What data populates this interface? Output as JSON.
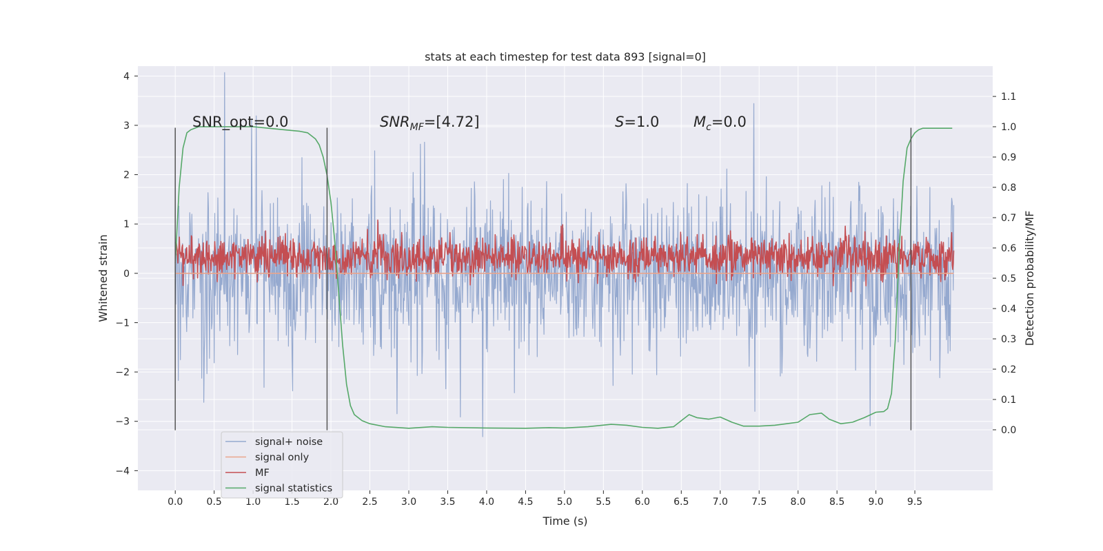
{
  "chart_data": {
    "type": "line",
    "title": "stats at each timestep for test data 893 [signal=0]",
    "xlabel": "Time (s)",
    "ylabel_left": "Whitened strain",
    "ylabel_right": "Detection probability/MF",
    "xlim": [
      -0.48,
      10.5
    ],
    "ylim_left": [
      -4.4,
      4.2
    ],
    "ylim_right": [
      -0.2,
      1.2
    ],
    "x_ticks": [
      "0.0",
      "0.5",
      "1.0",
      "1.5",
      "2.0",
      "2.5",
      "3.0",
      "3.5",
      "4.0",
      "4.5",
      "5.0",
      "5.5",
      "6.0",
      "6.5",
      "7.0",
      "7.5",
      "8.0",
      "8.5",
      "9.0",
      "9.5"
    ],
    "y_left_ticks": [
      "4",
      "3",
      "2",
      "1",
      "0",
      "−1",
      "−2",
      "−3",
      "−4"
    ],
    "y_right_ticks": [
      "1.1",
      "1.0",
      "0.9",
      "0.8",
      "0.7",
      "0.6",
      "0.5",
      "0.4",
      "0.3",
      "0.2",
      "0.1",
      "0.0"
    ],
    "grid": true,
    "legend_position": "lower-left",
    "annotations": {
      "snr_opt": "SNR_opt=0.0",
      "snr_mf_base": "SNR",
      "snr_mf_sub": "MF",
      "snr_mf_rest": "=[4.72]",
      "s_base": "S",
      "s_rest": "=1.0",
      "mc_base": "M",
      "mc_sub": "c",
      "mc_rest": "=0.0"
    },
    "vertical_lines_x": [
      0.0,
      1.95,
      9.45
    ],
    "series": [
      {
        "name": "signal+ noise",
        "color": "#95a9cf",
        "axis": "left",
        "x_range": [
          0.0,
          10.0
        ],
        "mean": 0.0,
        "std": 0.8,
        "samples": 1500,
        "seed": 893
      },
      {
        "name": "signal only",
        "color": "#e9a58c",
        "axis": "left",
        "x": [
          0.0,
          10.0
        ],
        "values": [
          0.0,
          0.0
        ]
      },
      {
        "name": "MF",
        "color": "#c44e52",
        "axis": "right",
        "x_range": [
          0.0,
          10.0
        ],
        "mean": 0.57,
        "std": 0.035,
        "samples": 1500,
        "seed": 42
      },
      {
        "name": "signal statistics",
        "color": "#55a868",
        "axis": "right",
        "x": [
          0.0,
          0.05,
          0.1,
          0.15,
          0.2,
          0.3,
          0.5,
          0.8,
          1.0,
          1.2,
          1.4,
          1.6,
          1.7,
          1.8,
          1.85,
          1.9,
          1.95,
          2.0,
          2.05,
          2.1,
          2.15,
          2.2,
          2.25,
          2.3,
          2.4,
          2.5,
          2.7,
          3.0,
          3.3,
          3.5,
          4.0,
          4.5,
          4.8,
          5.0,
          5.3,
          5.6,
          5.8,
          6.0,
          6.2,
          6.4,
          6.5,
          6.6,
          6.7,
          6.85,
          7.0,
          7.15,
          7.3,
          7.5,
          7.7,
          8.0,
          8.15,
          8.3,
          8.4,
          8.55,
          8.7,
          8.85,
          9.0,
          9.1,
          9.15,
          9.2,
          9.25,
          9.3,
          9.35,
          9.4,
          9.45,
          9.5,
          9.55,
          9.6,
          9.7,
          9.8,
          9.9,
          9.98
        ],
        "values": [
          0.55,
          0.8,
          0.93,
          0.98,
          0.99,
          1.0,
          1.0,
          1.0,
          1.0,
          0.995,
          0.99,
          0.985,
          0.98,
          0.96,
          0.94,
          0.9,
          0.84,
          0.75,
          0.62,
          0.45,
          0.28,
          0.15,
          0.08,
          0.05,
          0.03,
          0.02,
          0.01,
          0.005,
          0.01,
          0.008,
          0.006,
          0.005,
          0.007,
          0.006,
          0.01,
          0.018,
          0.015,
          0.008,
          0.005,
          0.01,
          0.03,
          0.05,
          0.04,
          0.035,
          0.042,
          0.025,
          0.012,
          0.012,
          0.015,
          0.025,
          0.05,
          0.055,
          0.035,
          0.02,
          0.025,
          0.04,
          0.058,
          0.06,
          0.07,
          0.12,
          0.3,
          0.6,
          0.82,
          0.93,
          0.96,
          0.98,
          0.99,
          0.995,
          0.995,
          0.995,
          0.995,
          0.995
        ]
      }
    ]
  }
}
